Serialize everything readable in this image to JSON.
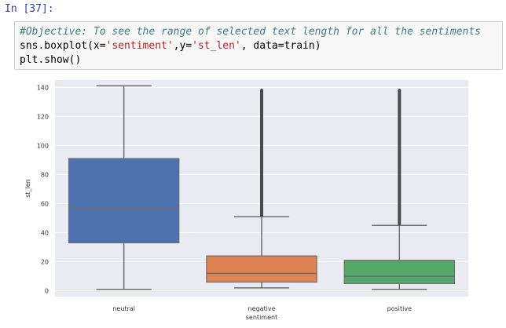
{
  "cell": {
    "prompt": "In [37]:",
    "code_line1": "#Objective: To see the range of selected text length for all the sentiments",
    "code_line2_a": "sns.boxplot(x=",
    "code_line2_b": "'sentiment'",
    "code_line2_c": ",y=",
    "code_line2_d": "'st_len'",
    "code_line2_e": ", data=train)",
    "code_line3": "plt.show()"
  },
  "chart_data": {
    "type": "boxplot",
    "title": "",
    "xlabel": "sentiment",
    "ylabel": "st_len",
    "ylim": [
      -4,
      145
    ],
    "yticks": [
      0,
      20,
      40,
      60,
      80,
      100,
      120,
      140
    ],
    "grid": true,
    "background": "#eaeaf2",
    "categories": [
      "neutral",
      "negative",
      "positive"
    ],
    "boxes": [
      {
        "name": "neutral",
        "color": "#4c72b0",
        "whisker_low": 1,
        "q1": 33,
        "median": 57,
        "q3": 91,
        "whisker_high": 141,
        "outliers_from": null,
        "outliers_to": null
      },
      {
        "name": "negative",
        "color": "#dd8452",
        "whisker_low": 2,
        "q1": 6,
        "median": 12,
        "q3": 24,
        "whisker_high": 51,
        "outliers_from": 52,
        "outliers_to": 138
      },
      {
        "name": "positive",
        "color": "#55a868",
        "whisker_low": 1,
        "q1": 5,
        "median": 10,
        "q3": 21,
        "whisker_high": 45,
        "outliers_from": 46,
        "outliers_to": 138
      }
    ]
  }
}
